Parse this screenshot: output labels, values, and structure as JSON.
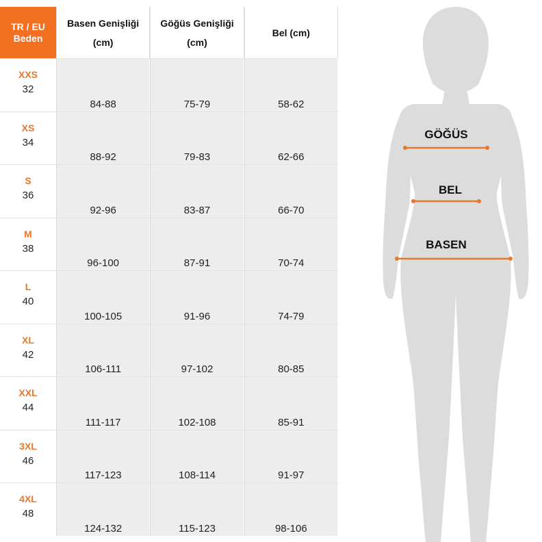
{
  "table": {
    "header": {
      "size_line1": "TR / EU",
      "size_line2": "Beden",
      "col1_line1": "Basen Genişliği",
      "col1_line2": "(cm)",
      "col2_line1": "Göğüs Genişliği",
      "col2_line2": "(cm)",
      "col3": "Bel (cm)"
    },
    "rows": [
      {
        "size": "XXS",
        "num": "32",
        "basen": "84-88",
        "gogus": "75-79",
        "bel": "58-62"
      },
      {
        "size": "XS",
        "num": "34",
        "basen": "88-92",
        "gogus": "79-83",
        "bel": "62-66"
      },
      {
        "size": "S",
        "num": "36",
        "basen": "92-96",
        "gogus": "83-87",
        "bel": "66-70"
      },
      {
        "size": "M",
        "num": "38",
        "basen": "96-100",
        "gogus": "87-91",
        "bel": "70-74"
      },
      {
        "size": "L",
        "num": "40",
        "basen": "100-105",
        "gogus": "91-96",
        "bel": "74-79"
      },
      {
        "size": "XL",
        "num": "42",
        "basen": "106-111",
        "gogus": "97-102",
        "bel": "80-85"
      },
      {
        "size": "XXL",
        "num": "44",
        "basen": "111-117",
        "gogus": "102-108",
        "bel": "85-91"
      },
      {
        "size": "3XL",
        "num": "46",
        "basen": "117-123",
        "gogus": "108-114",
        "bel": "91-97"
      },
      {
        "size": "4XL",
        "num": "48",
        "basen": "124-132",
        "gogus": "115-123",
        "bel": "98-106"
      }
    ]
  },
  "figure": {
    "chest_label": "GÖĞÜS",
    "waist_label": "BEL",
    "hip_label": "BASEN"
  },
  "colors": {
    "accent": "#f36f21",
    "size_text": "#e8772c",
    "cell_bg": "#ededed",
    "silhouette": "#dcdcdc"
  }
}
